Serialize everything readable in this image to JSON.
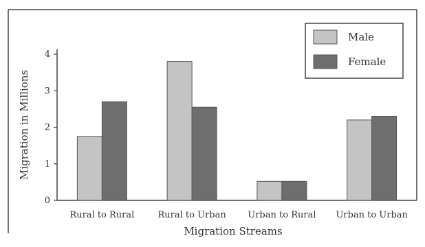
{
  "chart_data": {
    "type": "bar",
    "title": "",
    "xlabel": "Migration Streams",
    "ylabel": "Migration in Millions",
    "categories": [
      "Rural to Rural",
      "Rural to Urban",
      "Urban to Rural",
      "Urban to Urban"
    ],
    "series": [
      {
        "name": "Male",
        "values": [
          1.75,
          3.8,
          0.52,
          2.2
        ],
        "color": "#c4c4c4"
      },
      {
        "name": "Female",
        "values": [
          2.7,
          2.55,
          0.52,
          2.3
        ],
        "color": "#6e6e6e"
      }
    ],
    "ylim": [
      0,
      4
    ],
    "yticks": [
      0,
      1,
      2,
      3,
      4
    ],
    "legend_position": "top-right",
    "grid": false
  }
}
